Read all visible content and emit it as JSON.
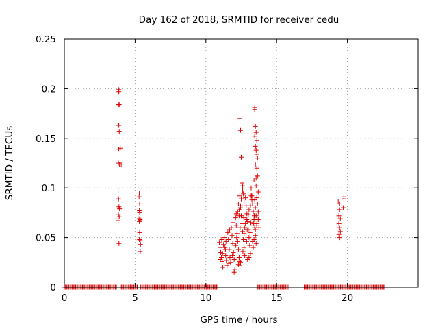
{
  "chart_data": {
    "type": "scatter",
    "title": "Day 162 of 2018, SRMTID for receiver cedu",
    "xlabel": "GPS time / hours",
    "ylabel": "SRMTID / TECUs",
    "xlim": [
      0,
      25
    ],
    "ylim": [
      0,
      0.25
    ],
    "xticks": [
      0,
      5,
      10,
      15,
      20
    ],
    "yticks": [
      0,
      0.05,
      0.1,
      0.15,
      0.2,
      0.25
    ],
    "xtick_labels": [
      "0",
      "5",
      "10",
      "15",
      "20"
    ],
    "ytick_labels": [
      "0",
      "0.05",
      "0.1",
      "0.15",
      "0.2",
      "0.25"
    ],
    "grid": true,
    "marker": "+",
    "color": "#dd0000",
    "zero_segments": [
      [
        0.0,
        3.75
      ],
      [
        3.95,
        5.2
      ],
      [
        5.4,
        10.85
      ],
      [
        13.65,
        15.85
      ],
      [
        16.95,
        22.7
      ]
    ],
    "zero_step": 0.08,
    "points": [
      [
        3.85,
        0.199
      ],
      [
        3.85,
        0.197
      ],
      [
        3.82,
        0.184
      ],
      [
        3.88,
        0.184
      ],
      [
        3.85,
        0.163
      ],
      [
        3.88,
        0.157
      ],
      [
        3.85,
        0.139
      ],
      [
        3.95,
        0.14
      ],
      [
        3.82,
        0.125
      ],
      [
        3.9,
        0.124
      ],
      [
        4.02,
        0.124
      ],
      [
        3.8,
        0.097
      ],
      [
        3.83,
        0.089
      ],
      [
        3.86,
        0.081
      ],
      [
        3.9,
        0.079
      ],
      [
        3.82,
        0.073
      ],
      [
        3.8,
        0.067
      ],
      [
        3.88,
        0.071
      ],
      [
        3.86,
        0.044
      ],
      [
        5.3,
        0.095
      ],
      [
        5.28,
        0.091
      ],
      [
        5.32,
        0.084
      ],
      [
        5.3,
        0.077
      ],
      [
        5.32,
        0.075
      ],
      [
        5.28,
        0.069
      ],
      [
        5.34,
        0.067
      ],
      [
        5.3,
        0.066
      ],
      [
        5.36,
        0.068
      ],
      [
        5.32,
        0.055
      ],
      [
        5.3,
        0.048
      ],
      [
        5.36,
        0.047
      ],
      [
        5.38,
        0.043
      ],
      [
        5.36,
        0.036
      ],
      [
        10.95,
        0.045
      ],
      [
        11.0,
        0.04
      ],
      [
        11.05,
        0.035
      ],
      [
        11.1,
        0.03
      ],
      [
        11.15,
        0.026
      ],
      [
        11.2,
        0.02
      ],
      [
        11.25,
        0.043
      ],
      [
        11.3,
        0.05
      ],
      [
        11.35,
        0.04
      ],
      [
        11.4,
        0.032
      ],
      [
        11.45,
        0.027
      ],
      [
        11.5,
        0.022
      ],
      [
        11.55,
        0.055
      ],
      [
        11.6,
        0.048
      ],
      [
        11.65,
        0.038
      ],
      [
        11.7,
        0.03
      ],
      [
        11.75,
        0.025
      ],
      [
        11.8,
        0.06
      ],
      [
        11.85,
        0.052
      ],
      [
        11.9,
        0.044
      ],
      [
        11.95,
        0.035
      ],
      [
        12.0,
        0.028
      ],
      [
        12.05,
        0.018
      ],
      [
        12.1,
        0.07
      ],
      [
        12.15,
        0.062
      ],
      [
        12.2,
        0.054
      ],
      [
        12.25,
        0.046
      ],
      [
        12.3,
        0.038
      ],
      [
        12.35,
        0.03
      ],
      [
        12.4,
        0.022
      ],
      [
        12.45,
        0.08
      ],
      [
        12.5,
        0.072
      ],
      [
        12.55,
        0.064
      ],
      [
        12.6,
        0.056
      ],
      [
        12.65,
        0.048
      ],
      [
        12.7,
        0.04
      ],
      [
        12.75,
        0.032
      ],
      [
        12.8,
        0.09
      ],
      [
        12.85,
        0.082
      ],
      [
        12.9,
        0.074
      ],
      [
        12.95,
        0.066
      ],
      [
        13.0,
        0.058
      ],
      [
        13.05,
        0.05
      ],
      [
        13.1,
        0.042
      ],
      [
        13.15,
        0.034
      ],
      [
        13.2,
        0.1
      ],
      [
        13.25,
        0.092
      ],
      [
        13.3,
        0.084
      ],
      [
        13.35,
        0.076
      ],
      [
        13.4,
        0.068
      ],
      [
        13.45,
        0.06
      ],
      [
        13.5,
        0.052
      ],
      [
        13.55,
        0.044
      ],
      [
        13.6,
        0.062
      ],
      [
        11.02,
        0.028
      ],
      [
        11.18,
        0.034
      ],
      [
        11.42,
        0.046
      ],
      [
        11.68,
        0.058
      ],
      [
        11.92,
        0.065
      ],
      [
        12.18,
        0.05
      ],
      [
        12.42,
        0.06
      ],
      [
        12.68,
        0.07
      ],
      [
        12.92,
        0.058
      ],
      [
        13.18,
        0.065
      ],
      [
        13.42,
        0.072
      ],
      [
        11.12,
        0.048
      ],
      [
        11.38,
        0.038
      ],
      [
        11.62,
        0.024
      ],
      [
        11.88,
        0.032
      ],
      [
        12.12,
        0.042
      ],
      [
        12.38,
        0.026
      ],
      [
        12.62,
        0.036
      ],
      [
        12.88,
        0.046
      ],
      [
        13.12,
        0.055
      ],
      [
        13.38,
        0.064
      ],
      [
        12.0,
        0.015
      ],
      [
        12.3,
        0.023
      ],
      [
        12.45,
        0.025
      ],
      [
        12.95,
        0.028
      ],
      [
        13.05,
        0.03
      ],
      [
        13.5,
        0.058
      ],
      [
        12.4,
        0.17
      ],
      [
        12.45,
        0.158
      ],
      [
        12.5,
        0.131
      ],
      [
        12.55,
        0.105
      ],
      [
        12.6,
        0.102
      ],
      [
        12.6,
        0.097
      ],
      [
        12.65,
        0.094
      ],
      [
        12.4,
        0.092
      ],
      [
        12.5,
        0.089
      ],
      [
        12.7,
        0.086
      ],
      [
        12.3,
        0.084
      ],
      [
        12.35,
        0.078
      ],
      [
        12.45,
        0.082
      ],
      [
        12.25,
        0.076
      ],
      [
        12.35,
        0.072
      ],
      [
        12.15,
        0.074
      ],
      [
        13.45,
        0.181
      ],
      [
        13.45,
        0.179
      ],
      [
        13.5,
        0.162
      ],
      [
        13.55,
        0.156
      ],
      [
        13.45,
        0.152
      ],
      [
        13.6,
        0.148
      ],
      [
        13.5,
        0.142
      ],
      [
        13.55,
        0.138
      ],
      [
        13.6,
        0.134
      ],
      [
        13.65,
        0.13
      ],
      [
        13.5,
        0.124
      ],
      [
        13.6,
        0.12
      ],
      [
        13.65,
        0.112
      ],
      [
        13.55,
        0.11
      ],
      [
        13.4,
        0.108
      ],
      [
        13.55,
        0.102
      ],
      [
        13.7,
        0.096
      ],
      [
        13.6,
        0.09
      ],
      [
        13.45,
        0.088
      ],
      [
        13.65,
        0.084
      ],
      [
        13.5,
        0.08
      ],
      [
        13.7,
        0.076
      ],
      [
        13.55,
        0.072
      ],
      [
        13.7,
        0.068
      ],
      [
        13.6,
        0.064
      ],
      [
        13.75,
        0.06
      ],
      [
        13.2,
        0.092
      ],
      [
        13.25,
        0.088
      ],
      [
        13.15,
        0.082
      ],
      [
        13.05,
        0.078
      ],
      [
        13.0,
        0.073
      ],
      [
        12.9,
        0.068
      ],
      [
        12.8,
        0.064
      ],
      [
        12.75,
        0.06
      ],
      [
        12.7,
        0.054
      ],
      [
        13.3,
        0.046
      ],
      [
        13.35,
        0.04
      ],
      [
        13.4,
        0.048
      ],
      [
        19.35,
        0.086
      ],
      [
        19.45,
        0.084
      ],
      [
        19.75,
        0.091
      ],
      [
        19.75,
        0.089
      ],
      [
        19.45,
        0.078
      ],
      [
        19.4,
        0.072
      ],
      [
        19.5,
        0.069
      ],
      [
        19.7,
        0.08
      ],
      [
        19.4,
        0.064
      ],
      [
        19.45,
        0.06
      ],
      [
        19.5,
        0.056
      ],
      [
        19.4,
        0.053
      ],
      [
        19.45,
        0.05
      ]
    ]
  }
}
